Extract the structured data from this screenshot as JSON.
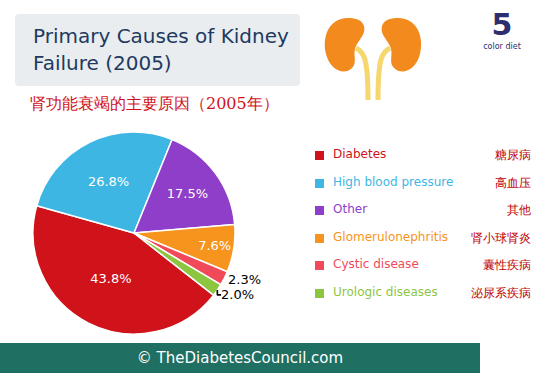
{
  "chart_data": {
    "type": "pie",
    "title": "Primary Causes of Kidney Failure (2005)",
    "subtitle": "肾功能衰竭的主要原因（2005年）",
    "categories": [
      "Diabetes",
      "High blood pressure",
      "Other",
      "Glomerulonephritis",
      "Cystic disease",
      "Urologic diseases"
    ],
    "categories_zh": [
      "糖尿病",
      "高血压",
      "其他",
      "肾小球肾炎",
      "囊性疾病",
      "泌尿系疾病"
    ],
    "values": [
      43.8,
      26.8,
      17.5,
      7.6,
      2.3,
      2.0
    ],
    "value_labels": [
      "43.8%",
      "26.8%",
      "17.5%",
      "7.6%",
      "2.3%",
      "2.0%"
    ],
    "colors": [
      "#d0121b",
      "#3db6e4",
      "#8e3ec8",
      "#f7941d",
      "#f04a5a",
      "#8cc63f"
    ],
    "data_labels": true,
    "legend": "right",
    "source": "© TheDiabetesCouncil.com",
    "logo": {
      "number": "5",
      "text": "color diet"
    }
  }
}
